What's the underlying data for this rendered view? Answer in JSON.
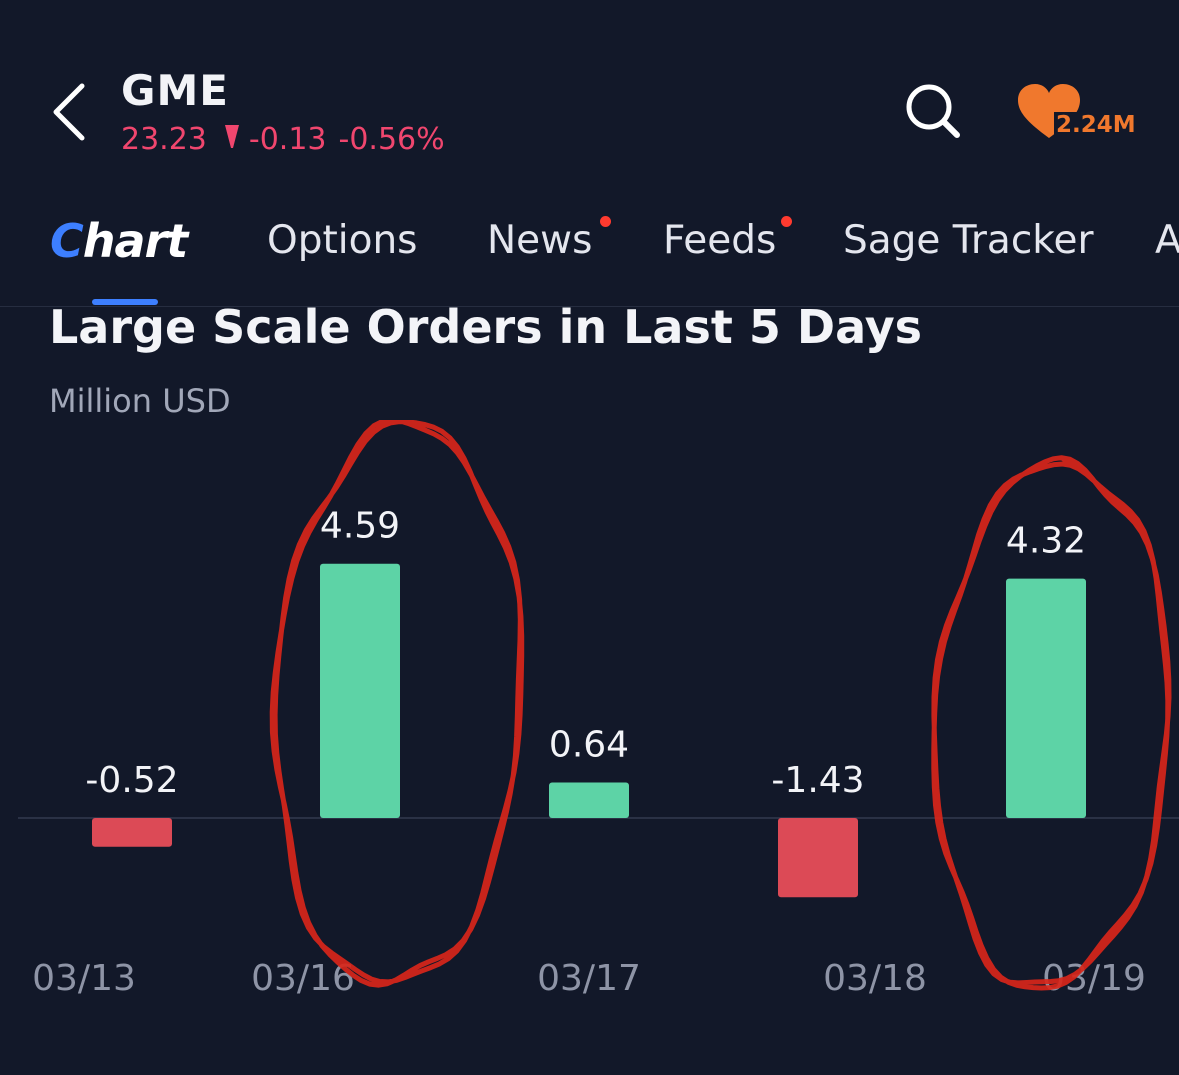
{
  "header": {
    "ticker": "GME",
    "price": "23.23",
    "change": "-0.13",
    "change_percent": "-0.56%",
    "watch_count": "2.24M",
    "price_color": "#f0466e",
    "watch_color": "#f0782d"
  },
  "tabs": [
    {
      "label": "Chart",
      "first": "C",
      "rest": "hart",
      "active": true,
      "dot": false
    },
    {
      "label": "Options",
      "active": false,
      "dot": false
    },
    {
      "label": "News",
      "active": false,
      "dot": true
    },
    {
      "label": "Feeds",
      "active": false,
      "dot": true
    },
    {
      "label": "Sage Tracker",
      "active": false,
      "dot": false
    },
    {
      "label": "A",
      "active": false,
      "dot": false
    }
  ],
  "section": {
    "title": "Large Scale Orders in Last 5 Days",
    "subtitle": "Million USD"
  },
  "chart_data": {
    "type": "bar",
    "title": "Large Scale Orders in Last 5 Days",
    "ylabel": "Million USD",
    "xlabel": "",
    "categories": [
      "03/13",
      "03/16",
      "03/17",
      "03/18",
      "03/19"
    ],
    "values": [
      -0.52,
      4.59,
      0.64,
      -1.43,
      4.32
    ],
    "value_labels": [
      "-0.52",
      "4.59",
      "0.64",
      "-1.43",
      "4.32"
    ],
    "ylim": [
      -1.43,
      4.59
    ],
    "grid": false,
    "positive_color": "#5dd3a6",
    "negative_color": "#dc4a56",
    "highlighted_categories": [
      "03/16",
      "03/19"
    ],
    "highlight_color": "#d8261a"
  }
}
